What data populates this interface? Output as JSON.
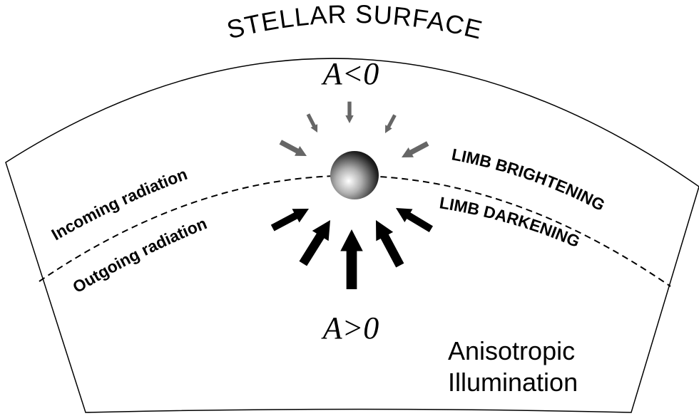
{
  "title": "STELLAR SURFACE",
  "top_label": "A<0",
  "bottom_label": "A>0",
  "left_labels": [
    "Incoming radiation",
    "Outgoing radiation"
  ],
  "right_labels": [
    "LIMB BRIGHTENING",
    "LIMB DARKENING"
  ],
  "caption": [
    "Anisotropic",
    "Illumination"
  ]
}
